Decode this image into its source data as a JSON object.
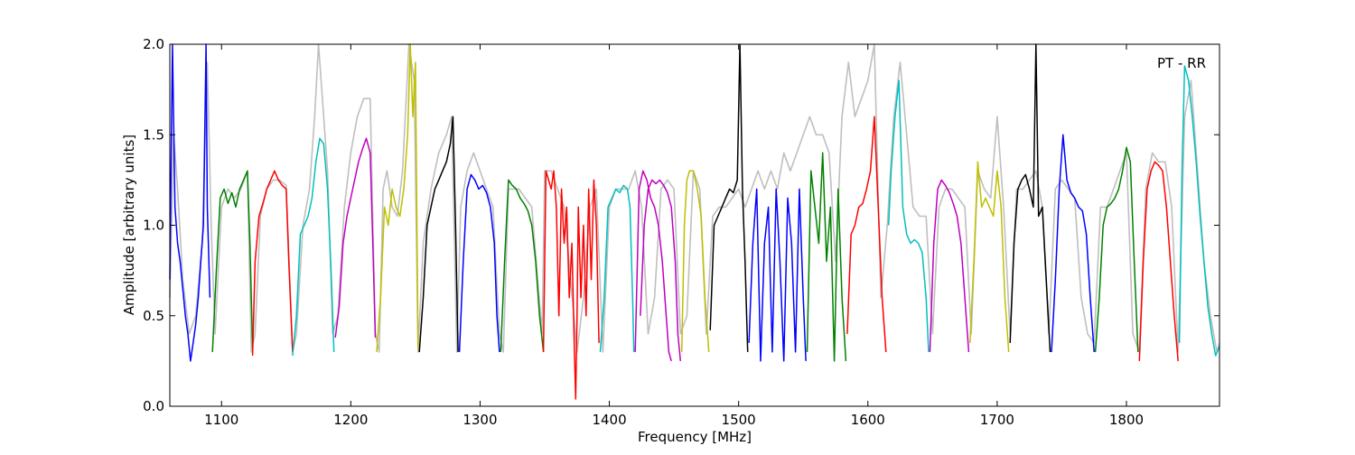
{
  "chart_data": {
    "type": "line",
    "annotation": "PT - RR",
    "xlabel": "Frequency [MHz]",
    "ylabel": "Amplitude [arbitrary units]",
    "xlim": [
      1060,
      1872
    ],
    "ylim": [
      0.0,
      2.0
    ],
    "xticks": [
      1100,
      1200,
      1300,
      1400,
      1500,
      1600,
      1700,
      1800
    ],
    "xtick_labels": [
      "1100",
      "1200",
      "1300",
      "1400",
      "1500",
      "1600",
      "1700",
      "1800"
    ],
    "yticks": [
      0.0,
      0.5,
      1.0,
      1.5,
      2.0
    ],
    "ytick_labels": [
      "0.0",
      "0.5",
      "1.0",
      "1.5",
      "2.0"
    ],
    "grid": false,
    "background_trace": {
      "color": "#bfbfbf",
      "x": [
        1060,
        1063,
        1066,
        1070,
        1075,
        1080,
        1085,
        1089,
        1092,
        1095,
        1100,
        1105,
        1110,
        1115,
        1120,
        1123,
        1126,
        1130,
        1135,
        1140,
        1145,
        1150,
        1155,
        1158,
        1163,
        1168,
        1172,
        1175,
        1178,
        1182,
        1186,
        1190,
        1195,
        1200,
        1205,
        1210,
        1215,
        1219,
        1222,
        1225,
        1228,
        1232,
        1236,
        1240,
        1245,
        1249,
        1252,
        1256,
        1262,
        1268,
        1274,
        1278,
        1282,
        1285,
        1290,
        1295,
        1300,
        1305,
        1310,
        1315,
        1318,
        1322,
        1330,
        1340,
        1348,
        1350,
        1355,
        1360,
        1365,
        1370,
        1375,
        1380,
        1385,
        1390,
        1395,
        1400,
        1405,
        1410,
        1415,
        1420,
        1425,
        1430,
        1435,
        1440,
        1445,
        1450,
        1455,
        1460,
        1465,
        1470,
        1475,
        1480,
        1485,
        1490,
        1495,
        1500,
        1505,
        1510,
        1515,
        1520,
        1525,
        1530,
        1535,
        1540,
        1545,
        1550,
        1555,
        1560,
        1565,
        1570,
        1575,
        1580,
        1585,
        1590,
        1595,
        1600,
        1605,
        1610,
        1615,
        1620,
        1625,
        1630,
        1635,
        1640,
        1645,
        1650,
        1655,
        1660,
        1665,
        1670,
        1675,
        1680,
        1685,
        1690,
        1695,
        1700,
        1705,
        1710,
        1715,
        1720,
        1725,
        1730,
        1735,
        1740,
        1745,
        1750,
        1755,
        1760,
        1765,
        1770,
        1775,
        1780,
        1785,
        1790,
        1795,
        1800,
        1805,
        1810,
        1815,
        1820,
        1825,
        1830,
        1835,
        1840,
        1845,
        1850,
        1855,
        1860,
        1865,
        1870,
        1872
      ],
      "y": [
        0.6,
        1.5,
        1.2,
        0.7,
        0.4,
        0.5,
        0.9,
        1.9,
        1.0,
        0.4,
        1.1,
        1.2,
        1.15,
        1.2,
        1.3,
        0.3,
        0.4,
        1.05,
        1.2,
        1.25,
        1.25,
        1.22,
        0.3,
        0.4,
        1.0,
        1.2,
        1.6,
        2.0,
        1.7,
        1.3,
        0.4,
        0.5,
        1.1,
        1.4,
        1.6,
        1.7,
        1.7,
        0.4,
        0.3,
        1.2,
        1.3,
        1.1,
        1.05,
        1.3,
        2.0,
        1.8,
        0.3,
        0.9,
        1.2,
        1.4,
        1.5,
        1.6,
        0.3,
        1.1,
        1.3,
        1.4,
        1.3,
        1.2,
        1.1,
        0.4,
        0.3,
        1.2,
        1.2,
        1.1,
        0.4,
        1.3,
        1.3,
        1.2,
        1.1,
        0.7,
        0.3,
        0.6,
        1.1,
        1.2,
        0.3,
        1.1,
        1.2,
        1.2,
        1.2,
        1.3,
        1.1,
        0.4,
        0.6,
        1.2,
        1.25,
        1.2,
        0.4,
        0.5,
        1.3,
        1.2,
        0.4,
        1.05,
        1.1,
        1.1,
        1.15,
        1.2,
        1.1,
        1.2,
        1.3,
        1.2,
        1.3,
        1.2,
        1.4,
        1.3,
        1.4,
        1.5,
        1.6,
        1.5,
        1.5,
        1.4,
        0.8,
        1.6,
        1.9,
        1.6,
        1.7,
        1.8,
        2.0,
        0.6,
        1.0,
        1.6,
        1.9,
        1.5,
        1.1,
        1.05,
        1.05,
        0.4,
        1.1,
        1.2,
        1.2,
        1.15,
        1.1,
        0.4,
        1.3,
        1.2,
        1.15,
        1.6,
        1.1,
        0.4,
        1.2,
        1.2,
        1.25,
        1.3,
        1.1,
        0.4,
        1.2,
        1.25,
        1.2,
        1.15,
        0.6,
        0.4,
        0.35,
        1.1,
        1.1,
        1.2,
        1.3,
        1.4,
        0.4,
        0.3,
        1.2,
        1.4,
        1.35,
        1.35,
        1.1,
        0.3,
        1.6,
        1.8,
        1.3,
        0.8,
        0.5,
        0.3,
        0.35
      ]
    },
    "series": [
      {
        "color": "#0000ff",
        "x": [
          1060,
          1062,
          1064,
          1066,
          1068,
          1070,
          1072,
          1074,
          1076,
          1078,
          1080,
          1082,
          1084,
          1086,
          1088,
          1089,
          1091
        ],
        "y": [
          0.7,
          2.0,
          1.1,
          0.9,
          0.8,
          0.65,
          0.5,
          0.4,
          0.25,
          0.35,
          0.45,
          0.6,
          0.8,
          1.0,
          2.0,
          1.1,
          0.6
        ]
      },
      {
        "color": "#008000",
        "x": [
          1093,
          1096,
          1099,
          1102,
          1105,
          1108,
          1111,
          1114,
          1117,
          1120,
          1122,
          1124
        ],
        "y": [
          0.3,
          0.75,
          1.15,
          1.2,
          1.12,
          1.18,
          1.1,
          1.2,
          1.25,
          1.3,
          0.9,
          0.32
        ]
      },
      {
        "color": "#ff0000",
        "x": [
          1124,
          1126,
          1129,
          1132,
          1135,
          1138,
          1141,
          1144,
          1147,
          1150,
          1152,
          1155
        ],
        "y": [
          0.28,
          0.8,
          1.05,
          1.12,
          1.2,
          1.25,
          1.3,
          1.25,
          1.22,
          1.2,
          0.8,
          0.3
        ]
      },
      {
        "color": "#00bfbf",
        "x": [
          1155,
          1158,
          1161,
          1164,
          1167,
          1170,
          1173,
          1176,
          1179,
          1182,
          1185,
          1187
        ],
        "y": [
          0.28,
          0.5,
          0.95,
          1.0,
          1.05,
          1.15,
          1.35,
          1.48,
          1.45,
          1.2,
          0.7,
          0.3
        ]
      },
      {
        "color": "#bf00bf",
        "x": [
          1188,
          1191,
          1194,
          1197,
          1200,
          1203,
          1206,
          1209,
          1212,
          1215,
          1217,
          1219
        ],
        "y": [
          0.38,
          0.55,
          0.9,
          1.05,
          1.15,
          1.25,
          1.35,
          1.42,
          1.48,
          1.4,
          0.9,
          0.38
        ]
      },
      {
        "color": "#bfbf00",
        "x": [
          1220,
          1223,
          1226,
          1229,
          1232,
          1235,
          1238,
          1241,
          1244,
          1246,
          1248,
          1250,
          1252
        ],
        "y": [
          0.3,
          0.6,
          1.1,
          1.0,
          1.2,
          1.1,
          1.05,
          1.2,
          1.5,
          2.0,
          1.6,
          1.9,
          0.32
        ]
      },
      {
        "color": "#000000",
        "x": [
          1253,
          1256,
          1259,
          1262,
          1265,
          1268,
          1271,
          1274,
          1277,
          1279,
          1281,
          1283
        ],
        "y": [
          0.3,
          0.6,
          1.0,
          1.1,
          1.2,
          1.25,
          1.3,
          1.35,
          1.45,
          1.6,
          1.0,
          0.3
        ]
      },
      {
        "color": "#0000ff",
        "x": [
          1284,
          1287,
          1290,
          1293,
          1296,
          1299,
          1302,
          1305,
          1308,
          1311,
          1313,
          1315
        ],
        "y": [
          0.3,
          0.8,
          1.2,
          1.28,
          1.25,
          1.2,
          1.22,
          1.18,
          1.1,
          0.9,
          0.5,
          0.3
        ]
      },
      {
        "color": "#008000",
        "x": [
          1316,
          1319,
          1322,
          1325,
          1328,
          1331,
          1334,
          1337,
          1340,
          1343,
          1346,
          1349
        ],
        "y": [
          0.3,
          0.8,
          1.25,
          1.22,
          1.2,
          1.15,
          1.12,
          1.08,
          1.0,
          0.8,
          0.5,
          0.3
        ]
      },
      {
        "color": "#ff0000",
        "x": [
          1349,
          1351,
          1353,
          1355,
          1357,
          1359,
          1361,
          1363,
          1365,
          1367,
          1369,
          1371,
          1373,
          1374,
          1375,
          1376,
          1378,
          1380,
          1382,
          1384,
          1386,
          1388,
          1390,
          1392
        ],
        "y": [
          0.3,
          1.3,
          1.25,
          1.2,
          1.3,
          1.1,
          0.5,
          1.2,
          0.9,
          1.1,
          0.6,
          0.9,
          0.3,
          0.04,
          0.5,
          1.1,
          0.6,
          1.0,
          0.5,
          1.2,
          0.7,
          1.25,
          1.0,
          0.35
        ]
      },
      {
        "color": "#00bfbf",
        "x": [
          1393,
          1396,
          1399,
          1402,
          1405,
          1408,
          1411,
          1414,
          1416,
          1418,
          1419
        ],
        "y": [
          0.3,
          0.6,
          1.1,
          1.15,
          1.2,
          1.18,
          1.22,
          1.2,
          1.1,
          0.6,
          0.3
        ]
      },
      {
        "color": "#bf00bf",
        "x": [
          1420,
          1423,
          1426,
          1429,
          1432,
          1435,
          1438,
          1441,
          1444,
          1446,
          1448
        ],
        "y": [
          0.3,
          1.2,
          1.3,
          1.25,
          1.15,
          1.1,
          1.0,
          0.8,
          0.5,
          0.3,
          0.25
        ]
      },
      {
        "color": "#bf00bf",
        "x": [
          1424,
          1427,
          1430,
          1433,
          1436,
          1439,
          1442,
          1445,
          1448,
          1451,
          1453,
          1455
        ],
        "y": [
          0.5,
          1.0,
          1.2,
          1.25,
          1.23,
          1.25,
          1.22,
          1.18,
          1.1,
          0.8,
          0.4,
          0.25
        ]
      },
      {
        "color": "#bfbf00",
        "x": [
          1456,
          1458,
          1460,
          1462,
          1465,
          1468,
          1471,
          1474,
          1477
        ],
        "y": [
          0.3,
          1.0,
          1.25,
          1.3,
          1.3,
          1.2,
          1.05,
          0.6,
          0.3
        ]
      },
      {
        "color": "#000000",
        "x": [
          1478,
          1481,
          1484,
          1487,
          1490,
          1493,
          1496,
          1499,
          1501,
          1503,
          1505,
          1507
        ],
        "y": [
          0.42,
          1.0,
          1.05,
          1.1,
          1.15,
          1.2,
          1.18,
          1.25,
          2.0,
          1.2,
          0.8,
          0.3
        ]
      },
      {
        "color": "#0000ff",
        "x": [
          1508,
          1511,
          1514,
          1517,
          1520,
          1523,
          1526,
          1529,
          1532,
          1535,
          1538,
          1541,
          1544,
          1547,
          1550,
          1552
        ],
        "y": [
          0.35,
          0.9,
          1.2,
          0.25,
          0.9,
          1.1,
          0.3,
          1.2,
          0.8,
          0.25,
          1.15,
          0.9,
          0.3,
          1.2,
          0.6,
          0.25
        ]
      },
      {
        "color": "#008000",
        "x": [
          1553,
          1556,
          1559,
          1562,
          1565,
          1568,
          1571,
          1574,
          1577,
          1580,
          1583
        ],
        "y": [
          0.3,
          1.3,
          1.1,
          0.9,
          1.4,
          0.8,
          1.1,
          0.25,
          1.2,
          0.6,
          0.25
        ]
      },
      {
        "color": "#ff0000",
        "x": [
          1584,
          1587,
          1590,
          1593,
          1596,
          1599,
          1602,
          1605,
          1608,
          1611,
          1614
        ],
        "y": [
          0.4,
          0.95,
          1.0,
          1.1,
          1.12,
          1.2,
          1.3,
          1.6,
          1.1,
          0.6,
          0.3
        ]
      },
      {
        "color": "#00bfbf",
        "x": [
          1616,
          1618,
          1621,
          1624,
          1627,
          1630,
          1633,
          1636,
          1639,
          1642,
          1645,
          1647
        ],
        "y": [
          1.0,
          1.3,
          1.6,
          1.8,
          1.1,
          0.95,
          0.9,
          0.92,
          0.9,
          0.85,
          0.6,
          0.3
        ]
      },
      {
        "color": "#bf00bf",
        "x": [
          1648,
          1651,
          1654,
          1657,
          1660,
          1663,
          1666,
          1669,
          1672,
          1675,
          1678
        ],
        "y": [
          0.3,
          0.9,
          1.2,
          1.25,
          1.22,
          1.18,
          1.12,
          1.05,
          0.9,
          0.6,
          0.3
        ]
      },
      {
        "color": "#bfbf00",
        "x": [
          1679,
          1682,
          1685,
          1688,
          1691,
          1694,
          1697,
          1700,
          1703,
          1706,
          1709
        ],
        "y": [
          0.35,
          0.8,
          1.35,
          1.1,
          1.15,
          1.1,
          1.05,
          1.3,
          1.1,
          0.6,
          0.3
        ]
      },
      {
        "color": "#000000",
        "x": [
          1710,
          1713,
          1716,
          1719,
          1722,
          1725,
          1728,
          1730,
          1732,
          1735,
          1738,
          1741
        ],
        "y": [
          0.35,
          0.9,
          1.2,
          1.25,
          1.28,
          1.2,
          1.1,
          2.0,
          1.05,
          1.1,
          0.7,
          0.3
        ]
      },
      {
        "color": "#0000ff",
        "x": [
          1742,
          1745,
          1748,
          1751,
          1754,
          1757,
          1760,
          1763,
          1766,
          1769,
          1772,
          1775
        ],
        "y": [
          0.3,
          0.7,
          1.2,
          1.5,
          1.25,
          1.18,
          1.15,
          1.1,
          1.08,
          0.95,
          0.6,
          0.3
        ]
      },
      {
        "color": "#008000",
        "x": [
          1776,
          1779,
          1782,
          1785,
          1788,
          1791,
          1794,
          1797,
          1800,
          1803,
          1806,
          1809
        ],
        "y": [
          0.3,
          0.6,
          1.0,
          1.1,
          1.12,
          1.15,
          1.2,
          1.3,
          1.43,
          1.35,
          0.8,
          0.3
        ]
      },
      {
        "color": "#ff0000",
        "x": [
          1810,
          1813,
          1816,
          1819,
          1822,
          1825,
          1828,
          1831,
          1834,
          1837,
          1840
        ],
        "y": [
          0.25,
          0.8,
          1.2,
          1.3,
          1.35,
          1.33,
          1.3,
          1.1,
          0.8,
          0.5,
          0.25
        ]
      },
      {
        "color": "#00bfbf",
        "x": [
          1841,
          1843,
          1845,
          1848,
          1851,
          1854,
          1857,
          1860,
          1863,
          1866,
          1869,
          1872
        ],
        "y": [
          0.35,
          1.3,
          1.88,
          1.8,
          1.6,
          1.35,
          1.05,
          0.8,
          0.55,
          0.4,
          0.28,
          0.33
        ]
      }
    ]
  }
}
